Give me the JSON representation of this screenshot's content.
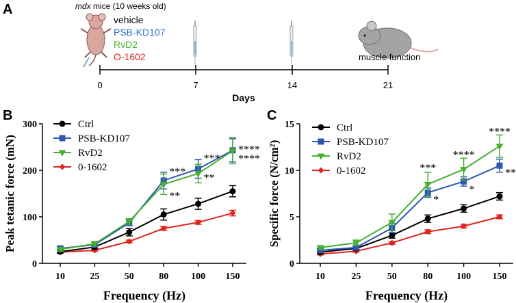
{
  "panel_a": {
    "letter": "A",
    "mouse_label_italic": "mdx",
    "mouse_label_rest": " mice (10 weeks old)",
    "treatments": [
      {
        "label": "vehicle",
        "color": "#000000"
      },
      {
        "label": "PSB-KD107",
        "color": "#2e75c9"
      },
      {
        "label": "RvD2",
        "color": "#44b02e"
      },
      {
        "label": "O-1602",
        "color": "#e0231b"
      }
    ],
    "endpoint_label": "muscle function",
    "timeline_ticks": [
      "0",
      "7",
      "14",
      "21"
    ],
    "axis_title": "Days"
  },
  "chart_data": [
    {
      "type": "line",
      "panel_letter": "B",
      "ylabel": "Peak tetanic force (mN)",
      "xlabel": "Frequency (Hz)",
      "categories": [
        "10",
        "25",
        "50",
        "80",
        "100",
        "150"
      ],
      "ylim": [
        0,
        300
      ],
      "yticks": [
        "0",
        "100",
        "200",
        "300"
      ],
      "legend_position": "top-left",
      "series": [
        {
          "name": "Ctrl",
          "color": "#000000",
          "marker": "circle",
          "values": [
            25,
            35,
            67,
            105,
            128,
            155
          ],
          "errors": [
            3,
            4,
            8,
            12,
            12,
            12
          ]
        },
        {
          "name": "PSB-KD107",
          "color": "#2d56b2",
          "marker": "square",
          "values": [
            32,
            40,
            87,
            178,
            203,
            243
          ],
          "errors": [
            4,
            5,
            6,
            18,
            20,
            25
          ]
        },
        {
          "name": "RvD2",
          "color": "#44b02e",
          "marker": "triangle",
          "values": [
            30,
            42,
            90,
            170,
            193,
            242
          ],
          "errors": [
            4,
            5,
            6,
            22,
            20,
            28
          ]
        },
        {
          "name": "0-1602",
          "color": "#e0231b",
          "marker": "diamond",
          "values": [
            24,
            28,
            47,
            75,
            88,
            108
          ],
          "errors": [
            2,
            2,
            3,
            4,
            4,
            6
          ]
        }
      ],
      "annotations": [
        {
          "cat": "80",
          "text": "***",
          "y": 200,
          "side": "right"
        },
        {
          "cat": "80",
          "text": "**",
          "y": 148,
          "side": "right"
        },
        {
          "cat": "100",
          "text": "***",
          "y": 229,
          "side": "right"
        },
        {
          "cat": "100",
          "text": "**",
          "y": 187,
          "side": "right"
        },
        {
          "cat": "150",
          "text": "****",
          "y": 248,
          "side": "right"
        },
        {
          "cat": "150",
          "text": "****",
          "y": 228,
          "side": "right"
        }
      ]
    },
    {
      "type": "line",
      "panel_letter": "C",
      "ylabel": "Specific force (N/cm²)",
      "xlabel": "Frequency (Hz)",
      "categories": [
        "10",
        "25",
        "50",
        "80",
        "100",
        "150"
      ],
      "ylim": [
        0,
        15
      ],
      "yticks": [
        "0",
        "5",
        "10",
        "15"
      ],
      "legend_position": "top-left",
      "series": [
        {
          "name": "Ctrl",
          "color": "#000000",
          "marker": "circle",
          "values": [
            1.2,
            1.6,
            3.0,
            4.8,
            5.9,
            7.2
          ],
          "errors": [
            0.15,
            0.2,
            0.3,
            0.4,
            0.4,
            0.4
          ]
        },
        {
          "name": "PSB-KD107",
          "color": "#2d56b2",
          "marker": "square",
          "values": [
            1.4,
            1.7,
            3.8,
            7.6,
            8.8,
            10.5
          ],
          "errors": [
            0.2,
            0.2,
            0.5,
            0.5,
            0.5,
            0.7
          ]
        },
        {
          "name": "RvD2",
          "color": "#44b02e",
          "marker": "triangle",
          "values": [
            1.7,
            2.2,
            4.4,
            8.5,
            10.1,
            12.6
          ],
          "errors": [
            0.2,
            0.3,
            0.9,
            1.3,
            1.2,
            1.2
          ]
        },
        {
          "name": "0-1602",
          "color": "#e0231b",
          "marker": "diamond",
          "values": [
            1.0,
            1.3,
            2.2,
            3.4,
            4.0,
            5.0
          ],
          "errors": [
            0.1,
            0.1,
            0.15,
            0.2,
            0.2,
            0.2
          ]
        }
      ],
      "annotations": [
        {
          "cat": "80",
          "text": "***",
          "y": 10.4,
          "side": "center"
        },
        {
          "cat": "80",
          "text": "*",
          "y": 7.0,
          "side": "right"
        },
        {
          "cat": "100",
          "text": "****",
          "y": 11.8,
          "side": "center"
        },
        {
          "cat": "100",
          "text": "*",
          "y": 8.1,
          "side": "right"
        },
        {
          "cat": "150",
          "text": "****",
          "y": 14.3,
          "side": "center"
        },
        {
          "cat": "150",
          "text": "**",
          "y": 9.9,
          "side": "right"
        }
      ]
    }
  ]
}
